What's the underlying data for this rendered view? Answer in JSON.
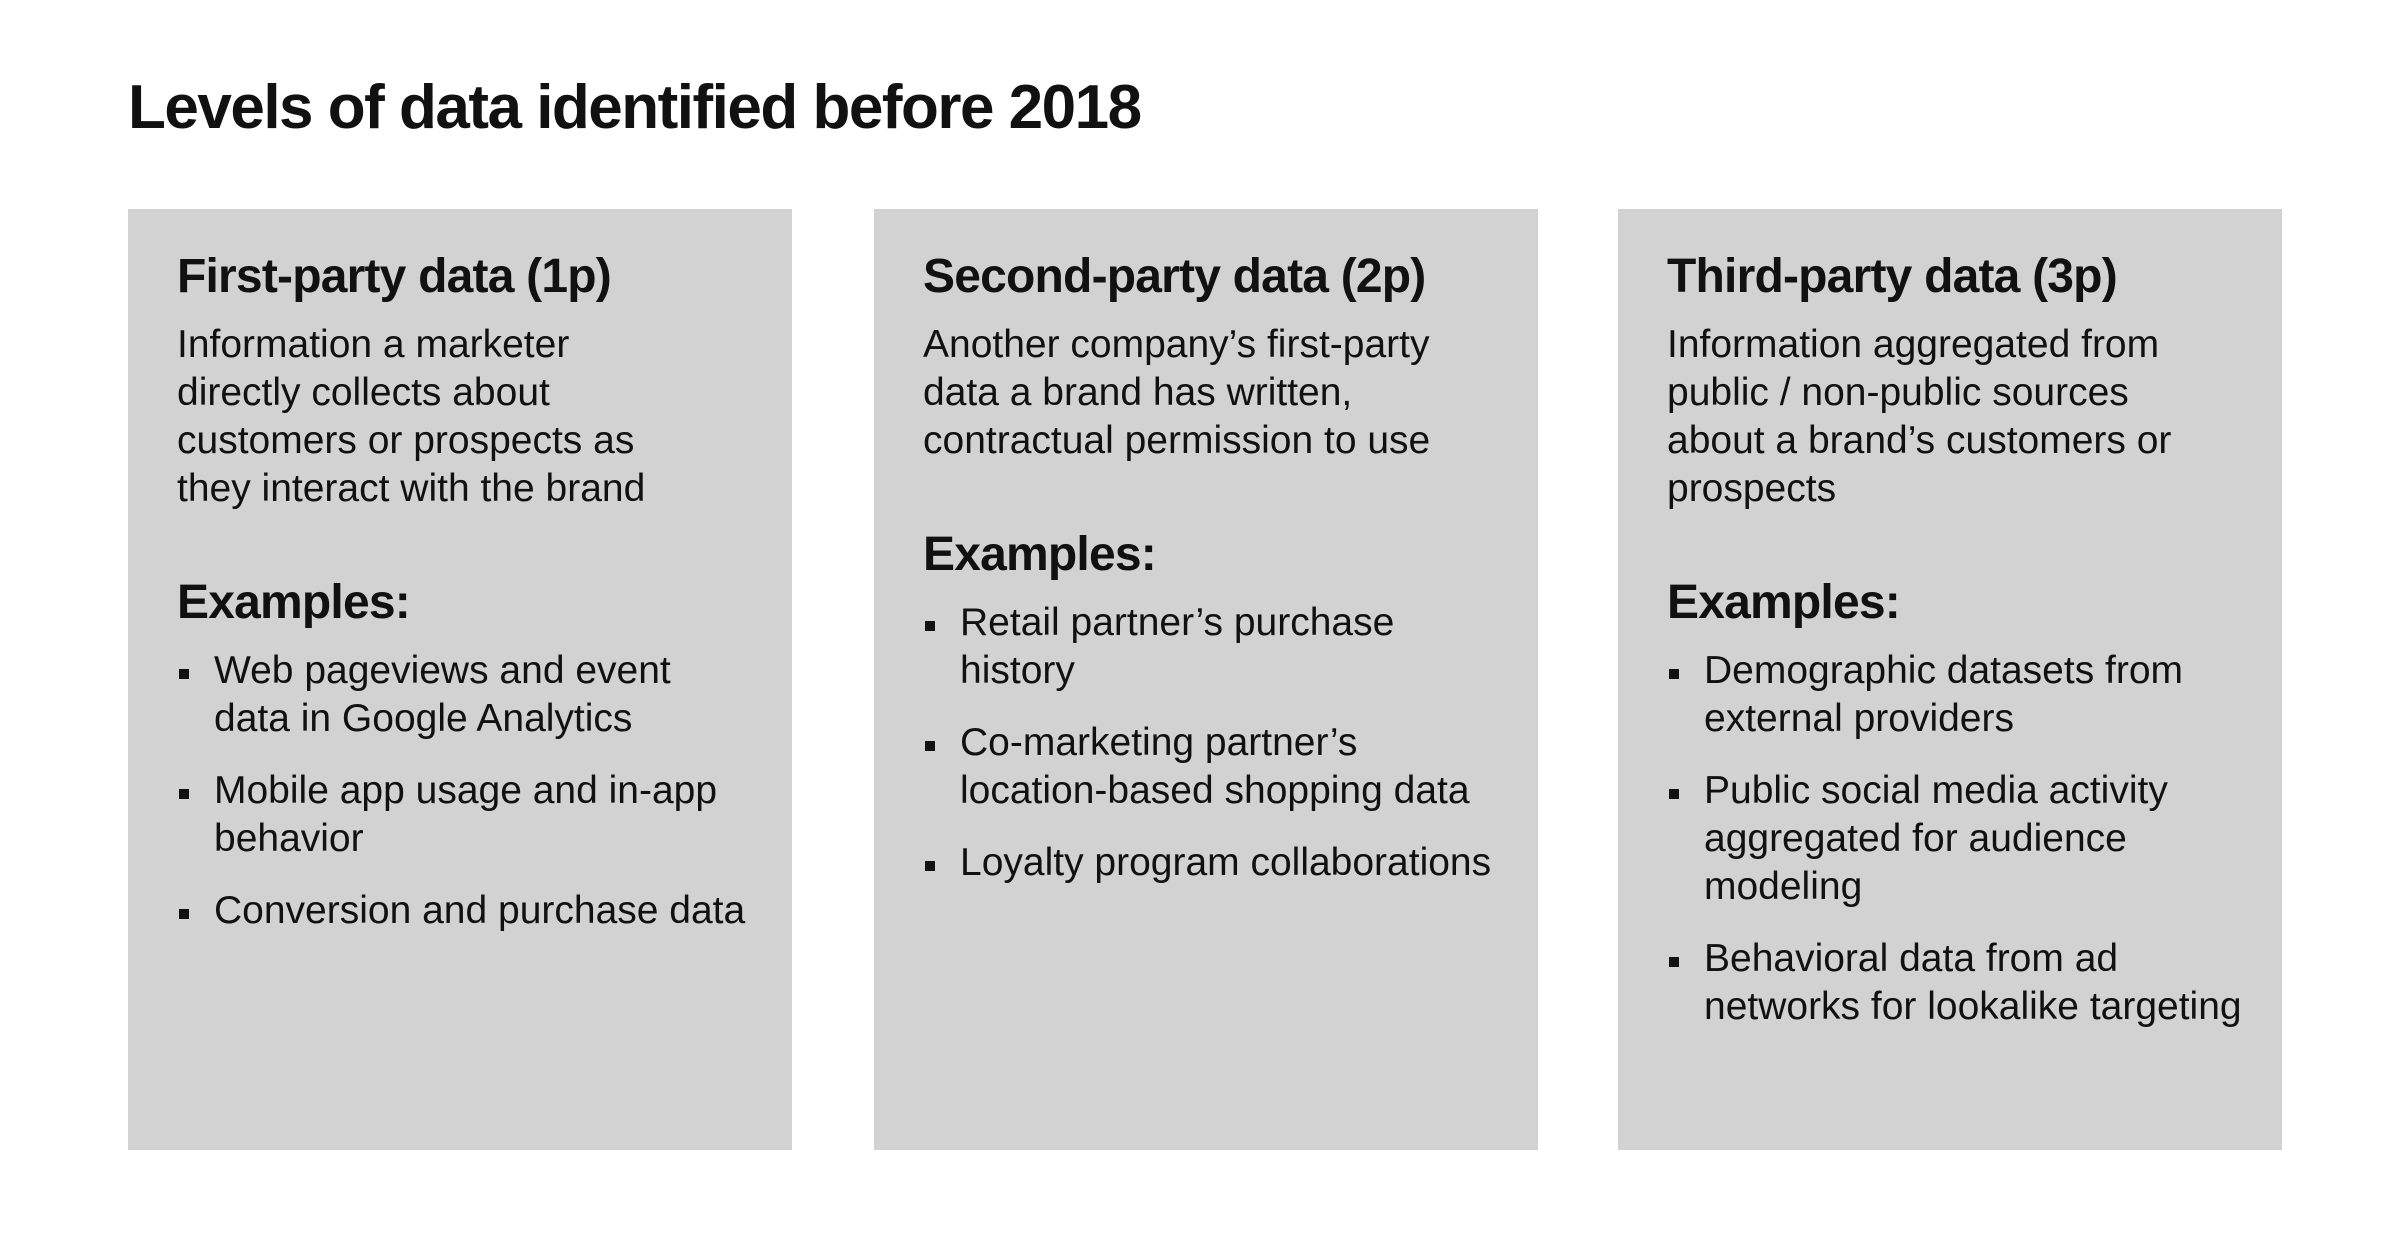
{
  "header": {
    "title": "Levels of data identified before 2018"
  },
  "cards": [
    {
      "heading": "First-party data (1p)",
      "description": "Information a marketer directly collects about customers or prospects as they interact with the brand",
      "examples_heading": "Examples:",
      "examples": [
        "Web pageviews and event data in Google Analytics",
        "Mobile app usage and in-app behavior",
        "Conversion and purchase data"
      ]
    },
    {
      "heading": "Second-party data (2p)",
      "description": "Another company’s first-party data a brand has written, contractual permission to use",
      "examples_heading": "Examples:",
      "examples": [
        "Retail partner’s purchase history",
        "Co-marketing partner’s location-based shopping data",
        "Loyalty program collaborations"
      ]
    },
    {
      "heading": "Third-party data (3p)",
      "description": "Information aggregated from public / non-public sources about a brand’s customers or prospects",
      "examples_heading": "Examples:",
      "examples": [
        "Demographic datasets from external providers",
        "Public social media activity aggregated for audience modeling",
        "Behavioral data from ad networks for lookalike targeting"
      ]
    }
  ]
}
